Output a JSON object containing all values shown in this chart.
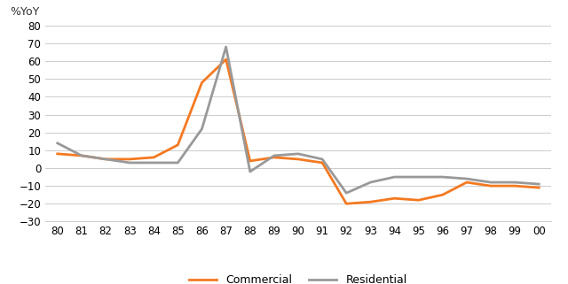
{
  "years": [
    80,
    81,
    82,
    83,
    84,
    85,
    86,
    87,
    88,
    89,
    90,
    91,
    92,
    93,
    94,
    95,
    96,
    97,
    98,
    99,
    0
  ],
  "commercial": [
    8,
    7,
    5,
    5,
    6,
    13,
    48,
    61,
    4,
    6,
    5,
    3,
    -20,
    -19,
    -17,
    -18,
    -15,
    -8,
    -10,
    -10,
    -11
  ],
  "residential": [
    14,
    7,
    5,
    3,
    3,
    3,
    22,
    68,
    -2,
    7,
    8,
    5,
    -14,
    -8,
    -5,
    -5,
    -5,
    -6,
    -8,
    -8,
    -9
  ],
  "commercial_color": "#f47920",
  "residential_color": "#999999",
  "linewidth": 2.0,
  "ylabel_annotation": "%YoY",
  "ylim": [
    -30,
    80
  ],
  "yticks": [
    -30,
    -20,
    -10,
    0,
    10,
    20,
    30,
    40,
    50,
    60,
    70,
    80
  ],
  "xtick_labels": [
    "80",
    "81",
    "82",
    "83",
    "84",
    "85",
    "86",
    "87",
    "88",
    "89",
    "90",
    "91",
    "92",
    "93",
    "94",
    "95",
    "96",
    "97",
    "98",
    "99",
    "00"
  ],
  "legend_labels": [
    "Commercial",
    "Residential"
  ],
  "background_color": "#ffffff",
  "grid_color": "#cccccc",
  "text_color": "#555555"
}
